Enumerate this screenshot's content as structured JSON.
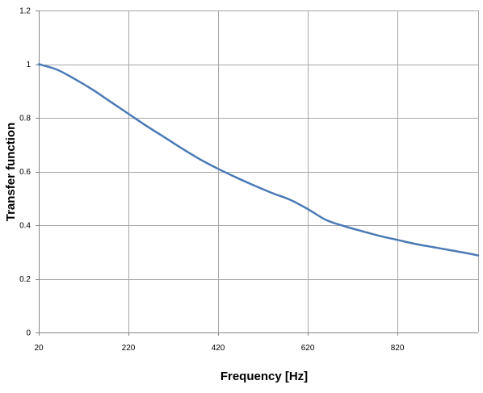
{
  "chart_data": {
    "type": "line",
    "title": "",
    "xlabel": "Frequency [Hz]",
    "ylabel": "Transfer function",
    "xlim": [
      20,
      1000
    ],
    "ylim": [
      0,
      1.2
    ],
    "x_ticks": [
      20,
      220,
      420,
      620,
      820
    ],
    "x_tick_labels": [
      "20",
      "220",
      "420",
      "620",
      "820"
    ],
    "y_ticks": [
      0,
      0.2,
      0.4,
      0.6,
      0.8,
      1,
      1.2
    ],
    "y_tick_labels": [
      "0",
      "0.2",
      "0.4",
      "0.6",
      "0.8",
      "1",
      "1.2"
    ],
    "grid": true,
    "legend": "none",
    "series": [
      {
        "color": "#4a7ab5",
        "x": [
          20,
          60,
          100,
          140,
          180,
          220,
          260,
          300,
          340,
          380,
          420,
          460,
          500,
          540,
          580,
          620,
          660,
          700,
          740,
          780,
          820,
          860,
          900,
          940,
          980,
          1000
        ],
        "y": [
          1.0,
          0.98,
          0.945,
          0.905,
          0.86,
          0.815,
          0.77,
          0.728,
          0.685,
          0.645,
          0.61,
          0.578,
          0.548,
          0.52,
          0.495,
          0.46,
          0.42,
          0.397,
          0.378,
          0.36,
          0.345,
          0.33,
          0.318,
          0.306,
          0.294,
          0.287
        ]
      }
    ]
  }
}
